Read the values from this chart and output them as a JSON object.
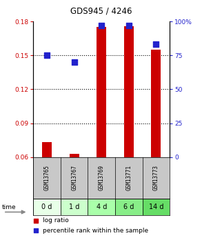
{
  "title": "GDS945 / 4246",
  "samples": [
    "GSM13765",
    "GSM13767",
    "GSM13769",
    "GSM13771",
    "GSM13773"
  ],
  "time_labels": [
    "0 d",
    "1 d",
    "4 d",
    "6 d",
    "14 d"
  ],
  "log_ratio": [
    0.073,
    0.063,
    0.175,
    0.176,
    0.155
  ],
  "percentile_rank": [
    75,
    70,
    97,
    97,
    83
  ],
  "log_ratio_baseline": 0.06,
  "ylim_left": [
    0.06,
    0.18
  ],
  "ylim_right": [
    0,
    100
  ],
  "yticks_left": [
    0.06,
    0.09,
    0.12,
    0.15,
    0.18
  ],
  "yticks_right": [
    0,
    25,
    50,
    75,
    100
  ],
  "ytick_labels_right": [
    "0",
    "25",
    "50",
    "75",
    "100%"
  ],
  "bar_color": "#cc0000",
  "dot_color": "#2222cc",
  "grid_color": "#000000",
  "bg_gsm": "#c8c8c8",
  "bg_time_colors": [
    "#e8ffe8",
    "#ccffcc",
    "#aaffaa",
    "#88ee88",
    "#66dd66"
  ],
  "left_label_color": "#cc0000",
  "right_label_color": "#2222cc",
  "legend_items": [
    "log ratio",
    "percentile rank within the sample"
  ],
  "bar_width": 0.35,
  "dot_size": 40
}
